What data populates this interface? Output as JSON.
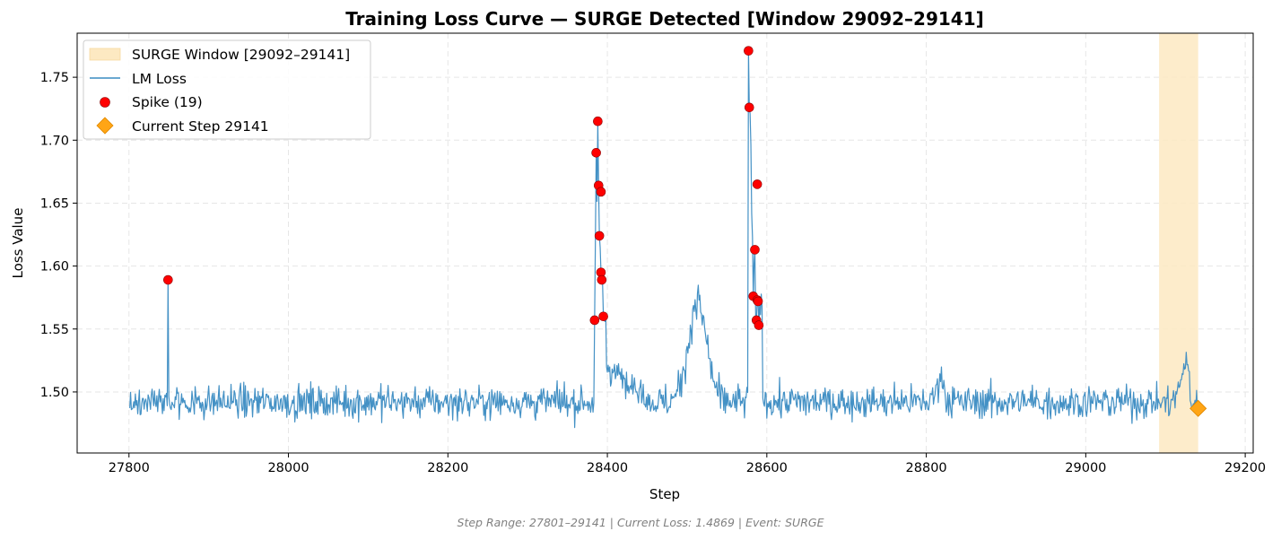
{
  "chart_data": {
    "type": "line",
    "title": "Training Loss Curve — SURGE Detected [Window 29092–29141]",
    "xlabel": "Step",
    "ylabel": "Loss Value",
    "xlim": [
      27735,
      29210
    ],
    "ylim": [
      1.4515,
      1.785
    ],
    "xticks": [
      27800,
      28000,
      28200,
      28400,
      28600,
      28800,
      29000,
      29200
    ],
    "yticks": [
      1.5,
      1.55,
      1.6,
      1.65,
      1.7,
      1.75
    ],
    "ytick_labels": [
      "1.50",
      "1.55",
      "1.60",
      "1.65",
      "1.70",
      "1.75"
    ],
    "grid": true,
    "legend_position": "top-left",
    "surge_window": {
      "name": "SURGE Window [29092–29141]",
      "start": 29092,
      "end": 29141,
      "color": "#fde9c2"
    },
    "loss_series": {
      "name": "LM Loss",
      "color": "#3a8bc2",
      "x_start": 27801,
      "x_end": 29141,
      "baseline": 1.492,
      "noise": 0.0065,
      "features": [
        {
          "type": "spike",
          "step": 27849,
          "value": 1.589
        },
        {
          "type": "burst",
          "start": 28384,
          "end": 28398,
          "peak_step": 28389,
          "peak": 1.715
        },
        {
          "type": "decay",
          "start": 28398,
          "end": 28450,
          "from": 1.52,
          "to": 1.495
        },
        {
          "type": "bump",
          "start": 28480,
          "end": 28545,
          "peak_step": 28513,
          "peak": 1.57
        },
        {
          "type": "burst",
          "start": 28577,
          "end": 28594,
          "peak_step": 28578,
          "peak": 1.771
        },
        {
          "type": "bump",
          "start": 28805,
          "end": 28830,
          "peak_step": 28818,
          "peak": 1.512
        },
        {
          "type": "bump",
          "start": 29110,
          "end": 29130,
          "peak_step": 29125,
          "peak": 1.523
        }
      ]
    },
    "spikes": {
      "name": "Spike (19)",
      "color": "#ff0000",
      "points": [
        {
          "x": 27849,
          "y": 1.589
        },
        {
          "x": 28384,
          "y": 1.557
        },
        {
          "x": 28386,
          "y": 1.69
        },
        {
          "x": 28388,
          "y": 1.715
        },
        {
          "x": 28389,
          "y": 1.664
        },
        {
          "x": 28390,
          "y": 1.624
        },
        {
          "x": 28392,
          "y": 1.659
        },
        {
          "x": 28392,
          "y": 1.595
        },
        {
          "x": 28393,
          "y": 1.589
        },
        {
          "x": 28395,
          "y": 1.56
        },
        {
          "x": 28577,
          "y": 1.771
        },
        {
          "x": 28578,
          "y": 1.726
        },
        {
          "x": 28583,
          "y": 1.576
        },
        {
          "x": 28585,
          "y": 1.613
        },
        {
          "x": 28587,
          "y": 1.557
        },
        {
          "x": 28588,
          "y": 1.665
        },
        {
          "x": 28588,
          "y": 1.573
        },
        {
          "x": 28589,
          "y": 1.572
        },
        {
          "x": 28590,
          "y": 1.553
        }
      ]
    },
    "current_step": {
      "name": "Current Step 29141",
      "x": 29141,
      "y": 1.4869,
      "color": "#ffa515"
    },
    "footer": "Step Range: 27801–29141 | Current Loss: 1.4869 | Event: SURGE"
  }
}
